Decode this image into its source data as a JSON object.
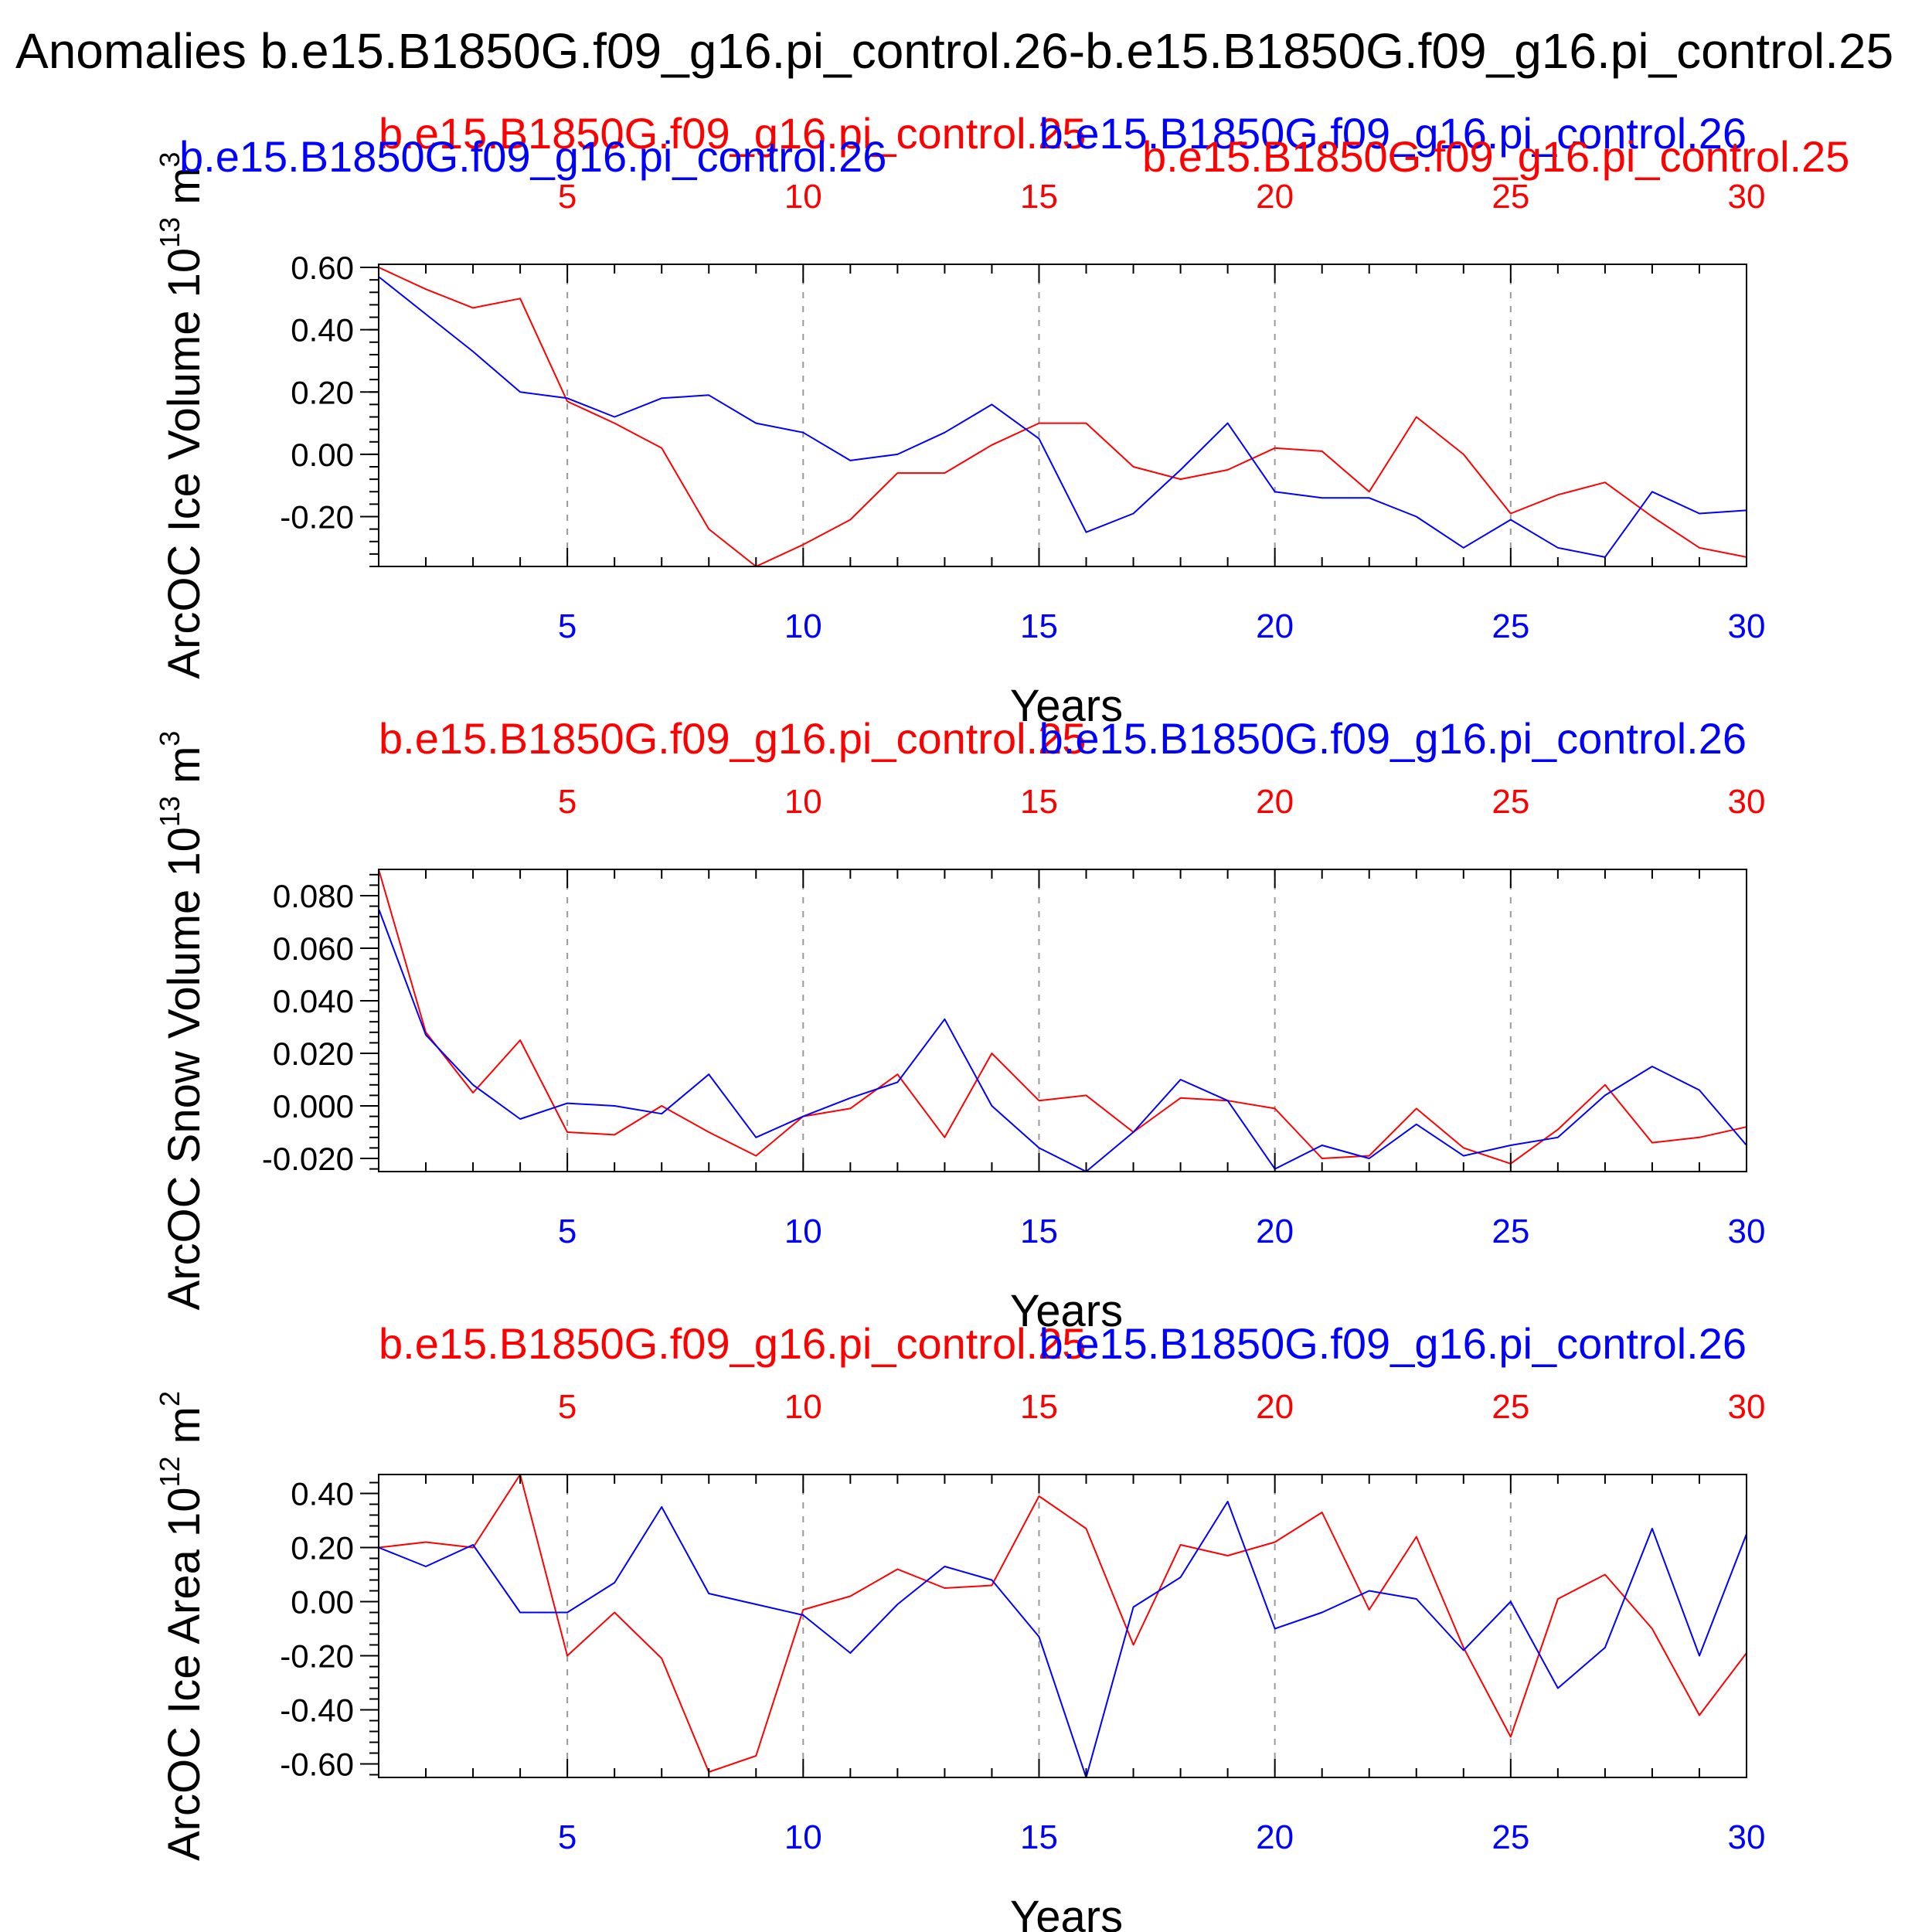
{
  "figure": {
    "title": "Anomalies b.e15.B1850G.f09_g16.pi_control.26-b.e15.B1850G.f09_g16.pi_control.25",
    "xlabel": "Years",
    "colors": {
      "series_a": "#ff0000",
      "series_b": "#0000ff",
      "axis": "#000000",
      "grid": "#999999"
    }
  },
  "chart_data": [
    {
      "type": "line",
      "ylabel": "ArcOC Ice Volume 10^13 m^3",
      "ylabel_main": "ArcOC Ice Volume 10",
      "ylabel_exp": "13",
      "ylabel_unit": "m",
      "ylabel_unit_exp": "3",
      "xlabel": "Years",
      "x": [
        1,
        2,
        3,
        4,
        5,
        6,
        7,
        8,
        9,
        10,
        11,
        12,
        13,
        14,
        15,
        16,
        17,
        18,
        19,
        20,
        21,
        22,
        23,
        24,
        25,
        26,
        27,
        28,
        29,
        30
      ],
      "xlim": [
        1,
        30
      ],
      "xticks": [
        5,
        10,
        15,
        20,
        25,
        30
      ],
      "xtick_labels": [
        "5",
        "10",
        "15",
        "20",
        "25",
        "30"
      ],
      "ylim": [
        -0.36,
        0.61
      ],
      "yticks": [
        0.6,
        0.4,
        0.2,
        0.0,
        -0.2
      ],
      "ytick_labels": [
        "0.60",
        "0.40",
        "0.20",
        "0.00",
        "-0.20"
      ],
      "yminor_step": 0.04,
      "grid": "vertical dashed at major x ticks",
      "series": [
        {
          "name": "b.e15.B1850G.f09_g16.pi_control.25",
          "color": "#ff0000",
          "label_layout": "top-left",
          "values": [
            0.6,
            0.53,
            0.47,
            0.5,
            0.17,
            0.1,
            0.02,
            -0.24,
            -0.36,
            -0.29,
            -0.21,
            -0.06,
            -0.06,
            0.03,
            0.1,
            0.1,
            -0.04,
            -0.08,
            -0.05,
            0.02,
            0.01,
            -0.12,
            0.12,
            0.0,
            -0.19,
            -0.13,
            -0.09,
            -0.2,
            -0.3,
            -0.33
          ]
        },
        {
          "name": "b.e15.B1850G.f09_g16.pi_control.26",
          "color": "#0000ff",
          "label_layout": "top-right",
          "values": [
            0.57,
            0.45,
            0.33,
            0.2,
            0.18,
            0.12,
            0.18,
            0.19,
            0.1,
            0.07,
            -0.02,
            0.0,
            0.07,
            0.16,
            0.05,
            -0.25,
            -0.19,
            -0.05,
            0.1,
            -0.12,
            -0.14,
            -0.14,
            -0.2,
            -0.3,
            -0.21,
            -0.3,
            -0.33,
            -0.12,
            -0.19,
            -0.18
          ]
        }
      ]
    },
    {
      "type": "line",
      "ylabel": "ArcOC Snow Volume 10^13 m^3",
      "ylabel_main": "ArcOC Snow Volume 10",
      "ylabel_exp": "13",
      "ylabel_unit": "m",
      "ylabel_unit_exp": "3",
      "xlabel": "Years",
      "x": [
        1,
        2,
        3,
        4,
        5,
        6,
        7,
        8,
        9,
        10,
        11,
        12,
        13,
        14,
        15,
        16,
        17,
        18,
        19,
        20,
        21,
        22,
        23,
        24,
        25,
        26,
        27,
        28,
        29,
        30
      ],
      "xlim": [
        1,
        30
      ],
      "xticks": [
        5,
        10,
        15,
        20,
        25,
        30
      ],
      "xtick_labels": [
        "5",
        "10",
        "15",
        "20",
        "25",
        "30"
      ],
      "ylim": [
        -0.025,
        0.09
      ],
      "yticks": [
        0.08,
        0.06,
        0.04,
        0.02,
        0.0,
        -0.02
      ],
      "ytick_labels": [
        "0.080",
        "0.060",
        "0.040",
        "0.020",
        "0.000",
        "-0.020"
      ],
      "yminor_step": 0.004,
      "grid": "vertical dashed at major x ticks",
      "series": [
        {
          "name": "b.e15.B1850G.f09_g16.pi_control.25",
          "color": "#ff0000",
          "label_layout": "top-left",
          "values": [
            0.09,
            0.028,
            0.005,
            0.025,
            -0.01,
            -0.011,
            0.0,
            -0.01,
            -0.019,
            -0.004,
            -0.001,
            0.012,
            -0.012,
            0.02,
            0.002,
            0.004,
            -0.01,
            0.003,
            0.002,
            -0.001,
            -0.02,
            -0.019,
            -0.001,
            -0.016,
            -0.022,
            -0.009,
            0.008,
            -0.014,
            -0.012,
            -0.008
          ]
        },
        {
          "name": "b.e15.B1850G.f09_g16.pi_control.26",
          "color": "#0000ff",
          "label_layout": "top-right",
          "values": [
            0.075,
            0.027,
            0.008,
            -0.005,
            0.001,
            0.0,
            -0.003,
            0.012,
            -0.012,
            -0.004,
            0.003,
            0.009,
            0.033,
            0.0,
            -0.016,
            -0.025,
            -0.01,
            0.01,
            0.002,
            -0.024,
            -0.015,
            -0.02,
            -0.007,
            -0.019,
            -0.015,
            -0.012,
            0.004,
            0.015,
            0.006,
            -0.015
          ]
        }
      ]
    },
    {
      "type": "line",
      "ylabel": "ArcOC Ice Area 10^12 m^2",
      "ylabel_main": "ArcOC Ice Area 10",
      "ylabel_exp": "12",
      "ylabel_unit": "m",
      "ylabel_unit_exp": "2",
      "xlabel": "Years",
      "x": [
        1,
        2,
        3,
        4,
        5,
        6,
        7,
        8,
        9,
        10,
        11,
        12,
        13,
        14,
        15,
        16,
        17,
        18,
        19,
        20,
        21,
        22,
        23,
        24,
        25,
        26,
        27,
        28,
        29,
        30
      ],
      "xlim": [
        1,
        30
      ],
      "xticks": [
        5,
        10,
        15,
        20,
        25,
        30
      ],
      "xtick_labels": [
        "5",
        "10",
        "15",
        "20",
        "25",
        "30"
      ],
      "ylim": [
        -0.65,
        0.47
      ],
      "yticks": [
        0.4,
        0.2,
        0.0,
        -0.2,
        -0.4,
        -0.6
      ],
      "ytick_labels": [
        "0.40",
        "0.20",
        "0.00",
        "-0.20",
        "-0.40",
        "-0.60"
      ],
      "yminor_step": 0.04,
      "grid": "vertical dashed at major x ticks",
      "series": [
        {
          "name": "b.e15.B1850G.f09_g16.pi_control.25",
          "color": "#ff0000",
          "label_layout": "top-left",
          "values": [
            0.2,
            0.22,
            0.2,
            0.47,
            -0.2,
            -0.04,
            -0.21,
            -0.63,
            -0.57,
            -0.03,
            0.02,
            0.12,
            0.05,
            0.06,
            0.39,
            0.27,
            -0.16,
            0.21,
            0.17,
            0.22,
            0.33,
            -0.03,
            0.24,
            -0.17,
            -0.5,
            0.01,
            0.1,
            -0.1,
            -0.42,
            -0.19
          ]
        },
        {
          "name": "b.e15.B1850G.f09_g16.pi_control.26",
          "color": "#0000ff",
          "label_layout": "top-right",
          "values": [
            0.2,
            0.13,
            0.21,
            -0.04,
            -0.04,
            0.07,
            0.35,
            0.03,
            -0.01,
            -0.05,
            -0.19,
            -0.01,
            0.13,
            0.08,
            -0.13,
            -0.65,
            -0.02,
            0.09,
            0.37,
            -0.1,
            -0.04,
            0.04,
            0.01,
            -0.18,
            0.0,
            -0.32,
            -0.17,
            0.27,
            -0.2,
            0.25
          ]
        }
      ]
    }
  ]
}
